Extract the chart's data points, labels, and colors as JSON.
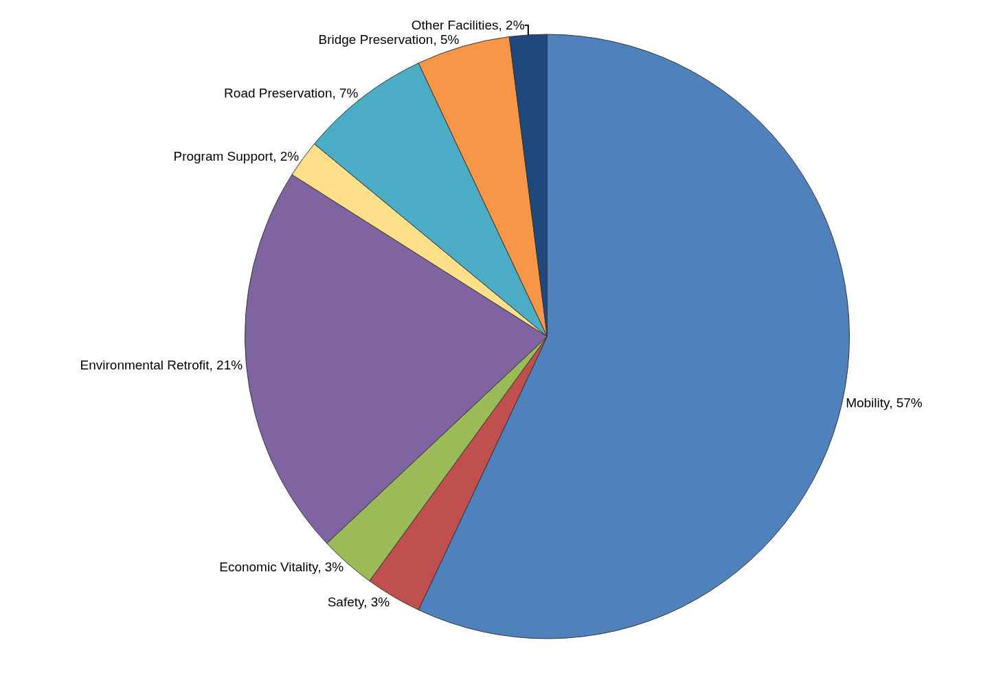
{
  "chart_data": {
    "type": "pie",
    "categories": [
      "Mobility",
      "Safety",
      "Economic Vitality",
      "Environmental Retrofit",
      "Program Support",
      "Road Preservation",
      "Bridge Preservation",
      "Other Facilities"
    ],
    "values": [
      57,
      3,
      3,
      21,
      2,
      7,
      5,
      2
    ],
    "value_labels": [
      "57%",
      "3%",
      "3%",
      "21%",
      "2%",
      "7%",
      "5%",
      "2%"
    ],
    "colors": [
      "#4f81bd",
      "#c0504d",
      "#9bbb59",
      "#8064a2",
      "#ffe08a",
      "#4bacc6",
      "#f79646",
      "#1f497d"
    ],
    "legend": false
  }
}
